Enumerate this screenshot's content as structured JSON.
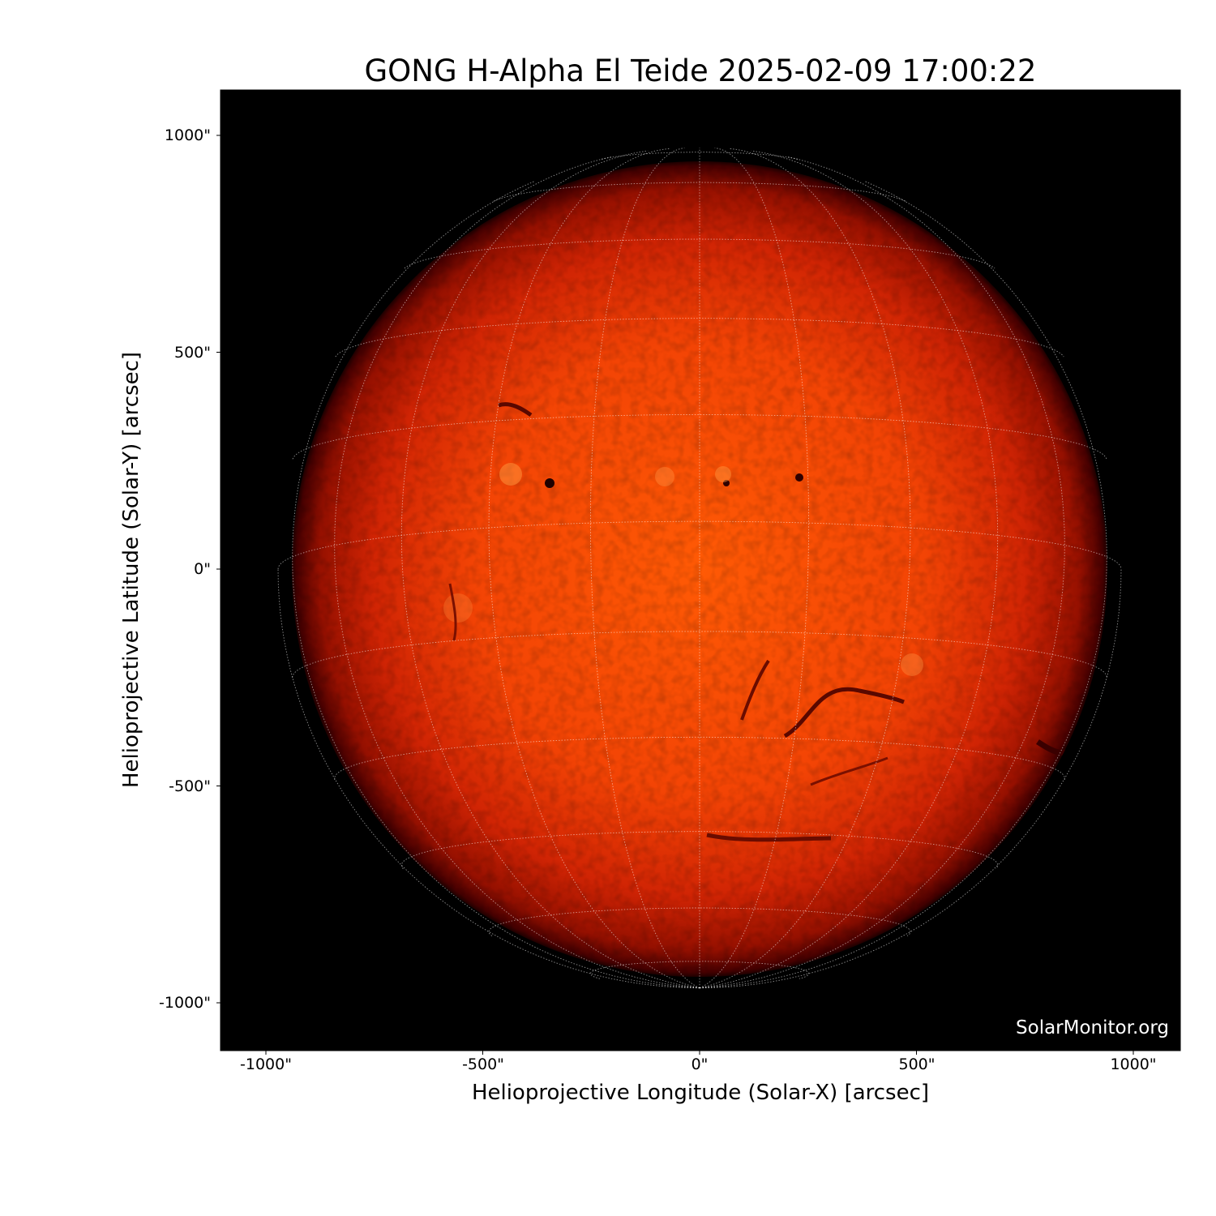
{
  "title": "GONG H-Alpha El Teide 2025-02-09 17:00:22",
  "xaxis": {
    "label": "Helioprojective Longitude (Solar-X) [arcsec]",
    "ticks": [
      "-1000\"",
      "-500\"",
      "0\"",
      "500\"",
      "1000\""
    ],
    "tick_values": [
      -1000,
      -500,
      0,
      500,
      1000
    ]
  },
  "yaxis": {
    "label": "Helioprojective Latitude (Solar-Y) [arcsec]",
    "ticks": [
      "1000\"",
      "500\"",
      "0\"",
      "-500\"",
      "-1000\""
    ],
    "tick_values": [
      1000,
      500,
      0,
      -500,
      -1000
    ]
  },
  "watermark": "SolarMonitor.org",
  "image": {
    "subject": "solar disk, H-alpha",
    "colormap": "red-orange",
    "background": "#000000",
    "grid": "heliographic lat/lon, 15 deg spacing"
  }
}
